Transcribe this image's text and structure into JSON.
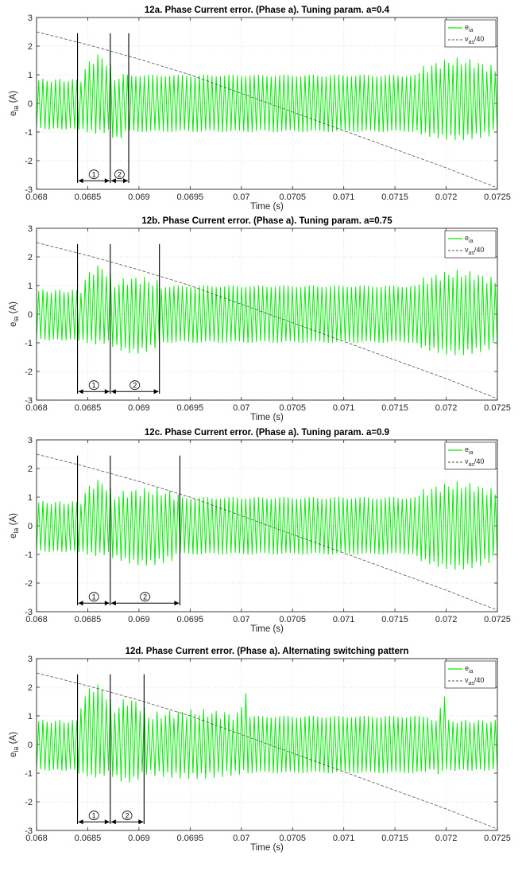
{
  "chart_data": [
    {
      "type": "line",
      "title": "12a. Phase Current error. (Phase a). Tuning param. a=0.4",
      "xlabel": "Time (s)",
      "ylabel": {
        "main": "e",
        "sub": "ia",
        "unit": " (A)"
      },
      "xlim": [
        0.068,
        0.0725
      ],
      "ylim": [
        -3,
        3
      ],
      "xticks": [
        "0.068",
        "0.0685",
        "0.069",
        "0.0695",
        "0.07",
        "0.0705",
        "0.071",
        "0.0715",
        "0.072",
        "0.0725"
      ],
      "yticks": [
        "3",
        "2",
        "1",
        "0",
        "-1",
        "-2",
        "-3"
      ],
      "grid": true,
      "legend_position": "top-right",
      "series": [
        {
          "name": {
            "main": "e",
            "sub": "ia",
            "suffix": ""
          },
          "color": "#00ee00",
          "style": "solid",
          "kind": "ripple",
          "periods": 109,
          "amplitude": 0.85,
          "features": [
            {
              "t0": 0.06845,
              "t1": 0.06872,
              "peak": 1.6,
              "low": -1.0
            },
            {
              "t0": 0.06872,
              "t1": 0.06885,
              "peak": 0.9,
              "low": -1.25
            },
            {
              "t0": 0.06885,
              "t1": 0.0717,
              "peak": 1.0,
              "low": -1.0
            },
            {
              "t0": 0.0717,
              "t1": 0.0725,
              "peak": 1.45,
              "low": -1.2
            }
          ]
        },
        {
          "name": {
            "main": "v",
            "sub": "as",
            "suffix": "/40"
          },
          "color": "#555555",
          "style": "dashed",
          "kind": "line",
          "x": [
            0.068,
            0.0685,
            0.069,
            0.0695,
            0.07,
            0.0705,
            0.071,
            0.0715,
            0.072,
            0.0725
          ],
          "y": [
            2.5,
            2.05,
            1.55,
            1.0,
            0.35,
            -0.3,
            -0.95,
            -1.6,
            -2.25,
            -2.95
          ]
        }
      ],
      "markers": [
        0.0684,
        0.06872,
        0.0689
      ],
      "intervals": [
        {
          "label": "1",
          "from": 0.0684,
          "to": 0.06872
        },
        {
          "label": "2",
          "from": 0.06872,
          "to": 0.0689
        }
      ]
    },
    {
      "type": "line",
      "title": "12b. Phase Current error. (Phase a). Tuning param. a=0.75",
      "xlabel": "Time (s)",
      "ylabel": {
        "main": "e",
        "sub": "ia",
        "unit": " (A)"
      },
      "xlim": [
        0.068,
        0.0725
      ],
      "ylim": [
        -3,
        3
      ],
      "xticks": [
        "0.068",
        "0.0685",
        "0.069",
        "0.0695",
        "0.07",
        "0.0705",
        "0.071",
        "0.0715",
        "0.072",
        "0.0725"
      ],
      "yticks": [
        "3",
        "2",
        "1",
        "0",
        "-1",
        "-2",
        "-3"
      ],
      "grid": true,
      "legend_position": "top-right",
      "series": [
        {
          "name": {
            "main": "e",
            "sub": "ia",
            "suffix": ""
          },
          "color": "#00ee00",
          "style": "solid",
          "kind": "ripple",
          "periods": 109,
          "amplitude": 0.85,
          "features": [
            {
              "t0": 0.06845,
              "t1": 0.06872,
              "peak": 1.6,
              "low": -1.0
            },
            {
              "t0": 0.06872,
              "t1": 0.0692,
              "peak": 1.2,
              "low": -1.3
            },
            {
              "t0": 0.0692,
              "t1": 0.0717,
              "peak": 1.0,
              "low": -1.0
            },
            {
              "t0": 0.0717,
              "t1": 0.0725,
              "peak": 1.4,
              "low": -1.35
            }
          ]
        },
        {
          "name": {
            "main": "v",
            "sub": "as",
            "suffix": "/40"
          },
          "color": "#555555",
          "style": "dashed",
          "kind": "line",
          "x": [
            0.068,
            0.0685,
            0.069,
            0.0695,
            0.07,
            0.0705,
            0.071,
            0.0715,
            0.072,
            0.0725
          ],
          "y": [
            2.5,
            2.05,
            1.55,
            1.0,
            0.35,
            -0.3,
            -0.95,
            -1.6,
            -2.25,
            -2.95
          ]
        }
      ],
      "markers": [
        0.0684,
        0.06872,
        0.0692
      ],
      "intervals": [
        {
          "label": "1",
          "from": 0.0684,
          "to": 0.06872
        },
        {
          "label": "2",
          "from": 0.06872,
          "to": 0.0692
        }
      ]
    },
    {
      "type": "line",
      "title": "12c. Phase Current error. (Phase a). Tuning param. a=0.9",
      "xlabel": "Time (s)",
      "ylabel": {
        "main": "e",
        "sub": "ia",
        "unit": " (A)"
      },
      "xlim": [
        0.068,
        0.0725
      ],
      "ylim": [
        -3,
        3
      ],
      "xticks": [
        "0.068",
        "0.0685",
        "0.069",
        "0.0695",
        "0.07",
        "0.0705",
        "0.071",
        "0.0715",
        "0.072",
        "0.0725"
      ],
      "yticks": [
        "3",
        "2",
        "1",
        "0",
        "-1",
        "-2",
        "-3"
      ],
      "grid": true,
      "legend_position": "top-right",
      "series": [
        {
          "name": {
            "main": "e",
            "sub": "ia",
            "suffix": ""
          },
          "color": "#00ee00",
          "style": "solid",
          "kind": "ripple",
          "periods": 109,
          "amplitude": 0.85,
          "features": [
            {
              "t0": 0.06845,
              "t1": 0.06872,
              "peak": 1.5,
              "low": -1.0
            },
            {
              "t0": 0.06872,
              "t1": 0.0694,
              "peak": 1.2,
              "low": -1.3
            },
            {
              "t0": 0.0694,
              "t1": 0.0717,
              "peak": 1.0,
              "low": -1.0
            },
            {
              "t0": 0.0717,
              "t1": 0.0725,
              "peak": 1.4,
              "low": -1.45
            }
          ]
        },
        {
          "name": {
            "main": "v",
            "sub": "as",
            "suffix": "/40"
          },
          "color": "#555555",
          "style": "dashed",
          "kind": "line",
          "x": [
            0.068,
            0.0685,
            0.069,
            0.0695,
            0.07,
            0.0705,
            0.071,
            0.0715,
            0.072,
            0.0725
          ],
          "y": [
            2.5,
            2.05,
            1.55,
            1.0,
            0.35,
            -0.3,
            -0.95,
            -1.6,
            -2.25,
            -2.95
          ]
        }
      ],
      "markers": [
        0.0684,
        0.06872,
        0.0694
      ],
      "intervals": [
        {
          "label": "1",
          "from": 0.0684,
          "to": 0.06872
        },
        {
          "label": "2",
          "from": 0.06872,
          "to": 0.0694
        }
      ]
    },
    {
      "type": "line",
      "title": "12d. Phase Current error. (Phase a). Alternating switching pattern",
      "xlabel": "Time (s)",
      "ylabel": {
        "main": "e",
        "sub": "ia",
        "unit": " (A)"
      },
      "xlim": [
        0.068,
        0.0725
      ],
      "ylim": [
        -3,
        3
      ],
      "xticks": [
        "0.068",
        "0.0685",
        "0.069",
        "0.0695",
        "0.07",
        "0.0705",
        "0.071",
        "0.0715",
        "0.072",
        "0.0725"
      ],
      "yticks": [
        "3",
        "2",
        "1",
        "0",
        "-1",
        "-2",
        "-3"
      ],
      "grid": true,
      "legend_position": "top-right",
      "series": [
        {
          "name": {
            "main": "e",
            "sub": "ia",
            "suffix": ""
          },
          "color": "#00ee00",
          "style": "solid",
          "kind": "ripple",
          "periods": 109,
          "amplitude": 0.85,
          "features": [
            {
              "t0": 0.0684,
              "t1": 0.06872,
              "peak": 2.0,
              "low": -1.1
            },
            {
              "t0": 0.06872,
              "t1": 0.06905,
              "peak": 1.5,
              "low": -1.25
            },
            {
              "t0": 0.06905,
              "t1": 0.07,
              "peak": 1.1,
              "low": -1.1
            },
            {
              "t0": 0.06998,
              "t1": 0.07004,
              "peak": 2.0,
              "low": -1.0
            },
            {
              "t0": 0.07004,
              "t1": 0.0718,
              "peak": 1.0,
              "low": -1.0
            },
            {
              "t0": 0.0719,
              "t1": 0.072,
              "peak": 1.6,
              "low": -1.0
            }
          ]
        },
        {
          "name": {
            "main": "v",
            "sub": "as",
            "suffix": "/40"
          },
          "color": "#555555",
          "style": "dashed",
          "kind": "line",
          "x": [
            0.068,
            0.0685,
            0.069,
            0.0695,
            0.07,
            0.0705,
            0.071,
            0.0715,
            0.072,
            0.0725
          ],
          "y": [
            2.5,
            2.05,
            1.55,
            1.0,
            0.35,
            -0.3,
            -0.95,
            -1.6,
            -2.25,
            -2.95
          ]
        }
      ],
      "markers": [
        0.0684,
        0.06872,
        0.06905
      ],
      "intervals": [
        {
          "label": "1",
          "from": 0.0684,
          "to": 0.06872
        },
        {
          "label": "2",
          "from": 0.06872,
          "to": 0.06905
        }
      ]
    }
  ]
}
